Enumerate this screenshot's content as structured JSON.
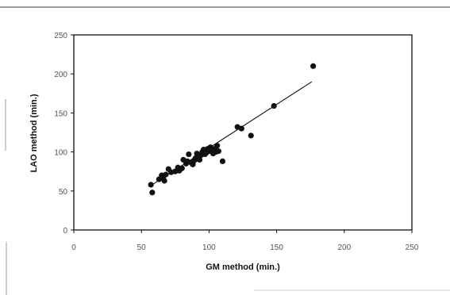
{
  "chart_data": {
    "type": "scatter",
    "title": "",
    "xlabel": "GM method (min.)",
    "ylabel": "LAO method (min.)",
    "xlim": [
      0,
      250
    ],
    "ylim": [
      0,
      250
    ],
    "x_ticks": [
      0,
      50,
      100,
      150,
      200,
      250
    ],
    "y_ticks": [
      0,
      50,
      100,
      150,
      200,
      250
    ],
    "x_tick_labels": [
      "0",
      "50",
      "100",
      "150",
      "200",
      "250"
    ],
    "y_tick_labels": [
      "0",
      "50",
      "100",
      "150",
      "200",
      "250"
    ],
    "grid": false,
    "legend": "none",
    "marker_color": "#111111",
    "line_color": "#111111",
    "points": [
      {
        "x": 57,
        "y": 58
      },
      {
        "x": 58,
        "y": 48
      },
      {
        "x": 63,
        "y": 65
      },
      {
        "x": 65,
        "y": 70
      },
      {
        "x": 66,
        "y": 66
      },
      {
        "x": 67,
        "y": 63
      },
      {
        "x": 68,
        "y": 71
      },
      {
        "x": 70,
        "y": 78
      },
      {
        "x": 72,
        "y": 74
      },
      {
        "x": 75,
        "y": 75
      },
      {
        "x": 77,
        "y": 80
      },
      {
        "x": 78,
        "y": 76
      },
      {
        "x": 80,
        "y": 79
      },
      {
        "x": 81,
        "y": 90
      },
      {
        "x": 83,
        "y": 85
      },
      {
        "x": 84,
        "y": 88
      },
      {
        "x": 85,
        "y": 97
      },
      {
        "x": 87,
        "y": 86
      },
      {
        "x": 88,
        "y": 84
      },
      {
        "x": 89,
        "y": 89
      },
      {
        "x": 90,
        "y": 92
      },
      {
        "x": 91,
        "y": 98
      },
      {
        "x": 92,
        "y": 91
      },
      {
        "x": 93,
        "y": 90
      },
      {
        "x": 94,
        "y": 96
      },
      {
        "x": 95,
        "y": 100
      },
      {
        "x": 96,
        "y": 103
      },
      {
        "x": 97,
        "y": 97
      },
      {
        "x": 98,
        "y": 99
      },
      {
        "x": 99,
        "y": 104
      },
      {
        "x": 100,
        "y": 101
      },
      {
        "x": 101,
        "y": 106
      },
      {
        "x": 102,
        "y": 103
      },
      {
        "x": 103,
        "y": 98
      },
      {
        "x": 104,
        "y": 104
      },
      {
        "x": 105,
        "y": 100
      },
      {
        "x": 106,
        "y": 108
      },
      {
        "x": 107,
        "y": 101
      },
      {
        "x": 110,
        "y": 88
      },
      {
        "x": 121,
        "y": 132
      },
      {
        "x": 124,
        "y": 130
      },
      {
        "x": 131,
        "y": 121
      },
      {
        "x": 148,
        "y": 159
      },
      {
        "x": 177,
        "y": 210
      }
    ],
    "trendline": [
      {
        "x": 57,
        "y": 57
      },
      {
        "x": 176,
        "y": 190
      }
    ]
  }
}
